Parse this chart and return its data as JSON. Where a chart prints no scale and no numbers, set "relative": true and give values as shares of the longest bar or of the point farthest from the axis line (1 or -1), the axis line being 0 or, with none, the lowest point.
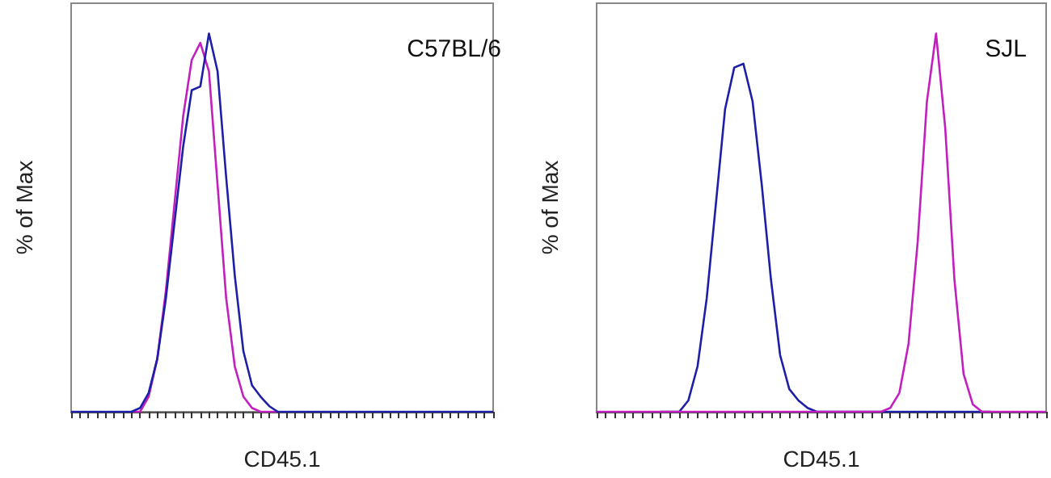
{
  "chart_data": [
    {
      "type": "line",
      "title": "C57BL/6",
      "xlabel": "CD45.1",
      "ylabel": "% of Max",
      "relative": true,
      "line_style": "solid",
      "categories": [
        null,
        null,
        null,
        null,
        null,
        null,
        null,
        null,
        null,
        null,
        null,
        null,
        null,
        null,
        null,
        null,
        null,
        null,
        null,
        null,
        null,
        null,
        null,
        null,
        null,
        null,
        null,
        null,
        null,
        null,
        null,
        null,
        null,
        null,
        null,
        null,
        null,
        null,
        null,
        null,
        null,
        null,
        null,
        null,
        null,
        null,
        null,
        null,
        null,
        null
      ],
      "series": [
        {
          "color": "#c21fbf",
          "values": [
            null,
            null,
            null,
            null,
            null,
            null,
            null,
            0,
            0,
            0.04,
            0.14,
            0.32,
            0.55,
            0.78,
            0.93,
            0.975,
            0.9,
            0.6,
            0.3,
            0.12,
            0.04,
            0.01,
            0,
            0,
            0,
            null,
            null,
            null,
            null,
            null,
            null,
            null,
            null,
            null,
            null,
            null,
            null,
            null,
            null,
            null,
            null,
            null,
            null,
            null,
            null,
            null,
            null,
            null,
            null,
            null
          ]
        },
        {
          "color": "#1d1fa8",
          "values": [
            0,
            0,
            0,
            0,
            0,
            0,
            0,
            0,
            0.01,
            0.05,
            0.14,
            0.3,
            0.5,
            0.7,
            0.85,
            0.86,
            1,
            0.9,
            0.62,
            0.36,
            0.16,
            0.07,
            0.04,
            0.015,
            0,
            0,
            0,
            0,
            0,
            0,
            0,
            0,
            0,
            0,
            0,
            0,
            0,
            0,
            0,
            0,
            0,
            0,
            0,
            0,
            0,
            0,
            0,
            0,
            0,
            0
          ]
        }
      ]
    },
    {
      "type": "line",
      "title": "SJL",
      "xlabel": "CD45.1",
      "ylabel": "% of Max",
      "relative": true,
      "line_style": "solid",
      "categories": [
        null,
        null,
        null,
        null,
        null,
        null,
        null,
        null,
        null,
        null,
        null,
        null,
        null,
        null,
        null,
        null,
        null,
        null,
        null,
        null,
        null,
        null,
        null,
        null,
        null,
        null,
        null,
        null,
        null,
        null,
        null,
        null,
        null,
        null,
        null,
        null,
        null,
        null,
        null,
        null,
        null,
        null,
        null,
        null,
        null,
        null,
        null,
        null,
        null,
        null
      ],
      "series": [
        {
          "color": "#1d1fa8",
          "values": [
            null,
            null,
            null,
            null,
            null,
            null,
            null,
            0,
            0,
            0,
            0.03,
            0.12,
            0.3,
            0.55,
            0.8,
            0.91,
            0.92,
            0.82,
            0.6,
            0.35,
            0.15,
            0.06,
            0.03,
            0.01,
            0,
            0,
            0,
            0,
            0,
            0,
            0,
            0,
            0,
            0,
            0,
            0,
            0,
            0,
            0,
            0,
            0,
            0,
            0,
            0,
            null,
            null,
            null,
            null,
            null,
            null
          ]
        },
        {
          "color": "#c21fbf",
          "values": [
            0,
            0,
            0,
            0,
            0,
            0,
            0,
            0,
            0,
            0,
            0,
            0,
            0,
            0,
            0,
            0,
            0,
            0,
            0,
            0,
            0,
            0,
            0,
            0,
            0,
            0,
            0,
            0,
            0,
            0,
            0,
            0,
            0.01,
            0.05,
            0.18,
            0.45,
            0.82,
            1,
            0.75,
            0.35,
            0.1,
            0.02,
            0,
            0,
            0,
            0,
            0,
            0,
            0,
            0
          ]
        }
      ]
    }
  ]
}
